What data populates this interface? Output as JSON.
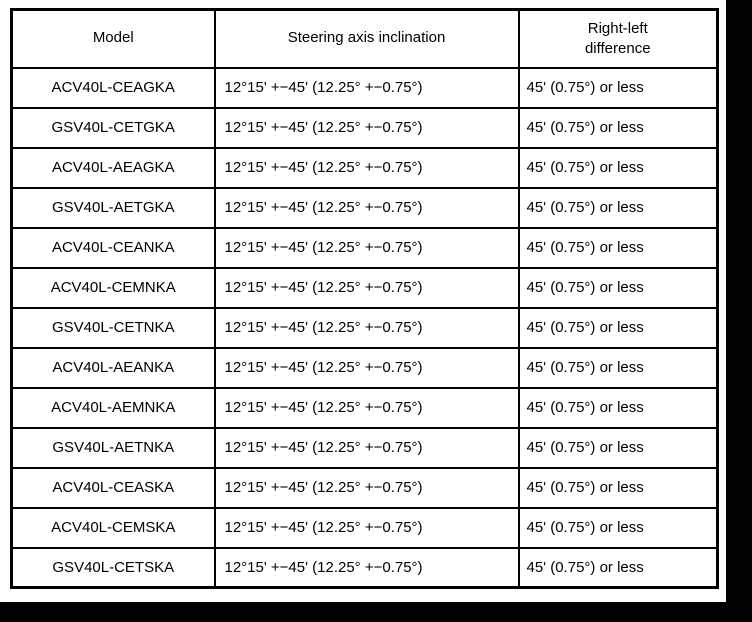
{
  "table": {
    "headers": [
      "Model",
      "Steering axis inclination",
      "Right-left difference"
    ],
    "rows": [
      [
        "ACV40L-CEAGKA",
        "12°15' +−45' (12.25° +−0.75°)",
        "45' (0.75°) or less"
      ],
      [
        "GSV40L-CETGKA",
        "12°15' +−45' (12.25° +−0.75°)",
        "45' (0.75°) or less"
      ],
      [
        "ACV40L-AEAGKA",
        "12°15' +−45' (12.25° +−0.75°)",
        "45' (0.75°) or less"
      ],
      [
        "GSV40L-AETGKA",
        "12°15' +−45' (12.25° +−0.75°)",
        "45' (0.75°) or less"
      ],
      [
        "ACV40L-CEANKA",
        "12°15' +−45' (12.25° +−0.75°)",
        "45' (0.75°) or less"
      ],
      [
        "ACV40L-CEMNKA",
        "12°15' +−45' (12.25° +−0.75°)",
        "45' (0.75°) or less"
      ],
      [
        "GSV40L-CETNKA",
        "12°15' +−45' (12.25° +−0.75°)",
        "45' (0.75°) or less"
      ],
      [
        "ACV40L-AEANKA",
        "12°15' +−45' (12.25° +−0.75°)",
        "45' (0.75°) or less"
      ],
      [
        "ACV40L-AEMNKA",
        "12°15' +−45' (12.25° +−0.75°)",
        "45' (0.75°) or less"
      ],
      [
        "GSV40L-AETNKA",
        "12°15' +−45' (12.25° +−0.75°)",
        "45' (0.75°) or less"
      ],
      [
        "ACV40L-CEASKA",
        "12°15' +−45' (12.25° +−0.75°)",
        "45' (0.75°) or less"
      ],
      [
        "ACV40L-CEMSKA",
        "12°15' +−45' (12.25° +−0.75°)",
        "45' (0.75°) or less"
      ],
      [
        "GSV40L-CETSKA",
        "12°15' +−45' (12.25° +−0.75°)",
        "45' (0.75°) or less"
      ]
    ]
  }
}
